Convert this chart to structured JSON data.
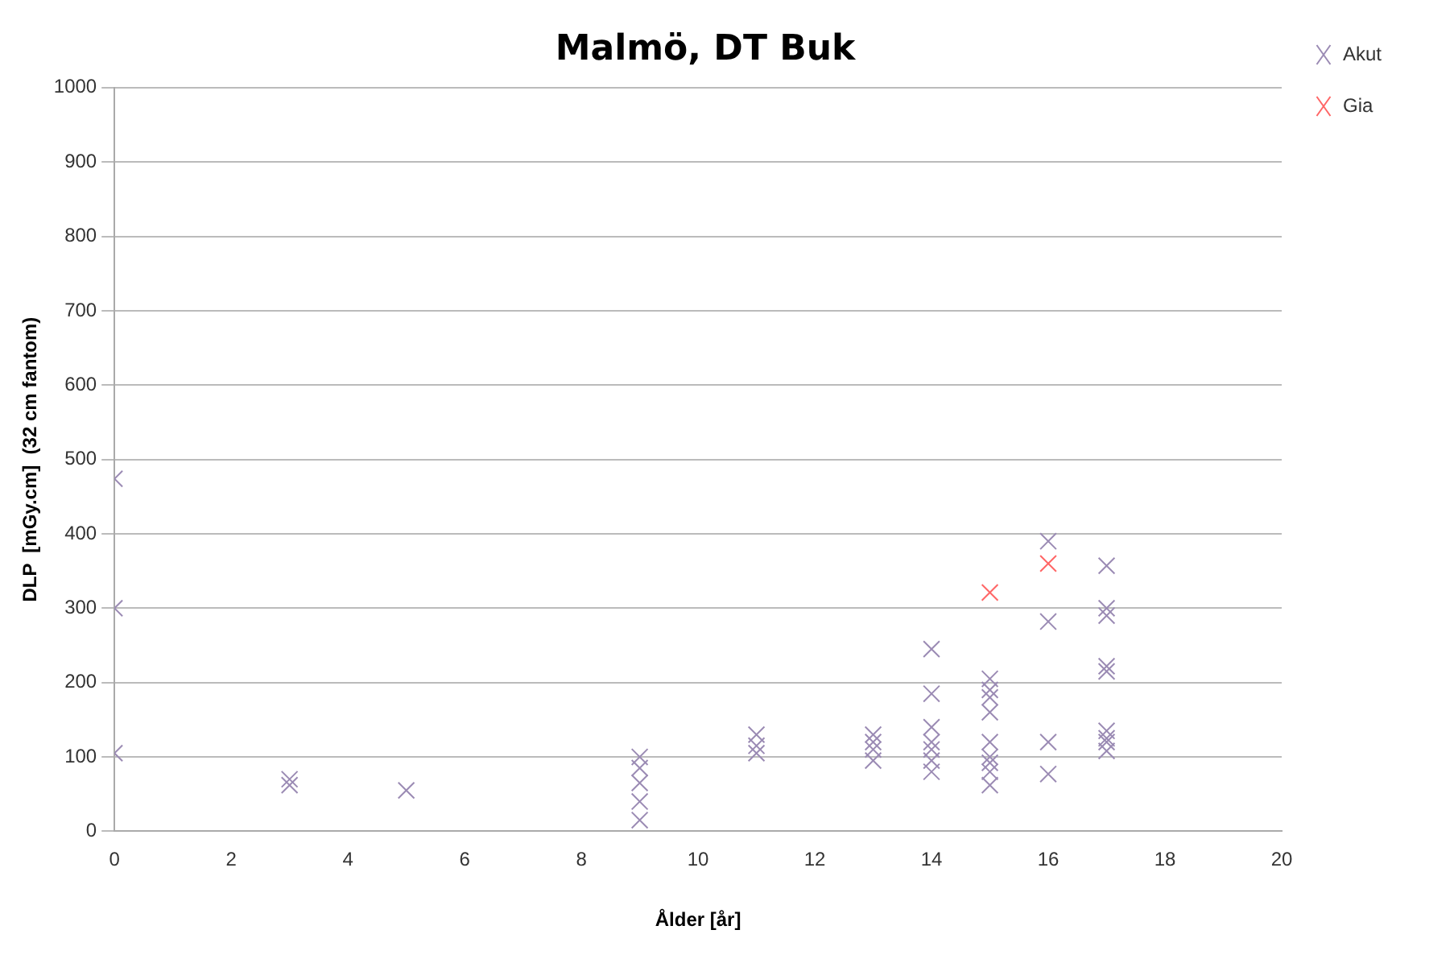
{
  "chart_data": {
    "type": "scatter",
    "title": "Malmö, DT Buk",
    "xlabel": "Ålder [år]",
    "ylabel": "DLP  [mGy.cm]  (32 cm fantom)",
    "xlim": [
      0,
      20
    ],
    "xticks": [
      0,
      2,
      4,
      6,
      8,
      10,
      12,
      14,
      16,
      18,
      20
    ],
    "ylim": [
      0,
      1000
    ],
    "yticks": [
      0,
      100,
      200,
      300,
      400,
      500,
      600,
      700,
      800,
      900,
      1000
    ],
    "grid": "y",
    "legend": "top right",
    "marker": "cross",
    "series": [
      {
        "name": "Akut",
        "color": "#9b8bb4",
        "x": [
          0,
          0,
          0,
          3,
          3,
          5,
          9,
          9,
          9,
          9,
          9,
          11,
          11,
          11,
          13,
          13,
          13,
          13,
          14,
          14,
          14,
          14,
          14,
          14,
          14,
          15,
          15,
          15,
          15,
          15,
          15,
          15,
          15,
          15,
          16,
          16,
          16,
          16,
          17,
          17,
          17,
          17,
          17,
          17,
          17,
          17,
          17
        ],
        "values": [
          474,
          300,
          105,
          70,
          62,
          55,
          100,
          85,
          65,
          40,
          15,
          130,
          115,
          105,
          130,
          120,
          110,
          95,
          245,
          185,
          140,
          120,
          110,
          95,
          80,
          205,
          190,
          180,
          160,
          120,
          100,
          92,
          80,
          62,
          390,
          282,
          120,
          77,
          357,
          300,
          290,
          222,
          215,
          135,
          125,
          120,
          108
        ]
      },
      {
        "name": "Gia",
        "color": "#ff6666",
        "x": [
          15,
          16
        ],
        "values": [
          321,
          360
        ]
      }
    ]
  }
}
